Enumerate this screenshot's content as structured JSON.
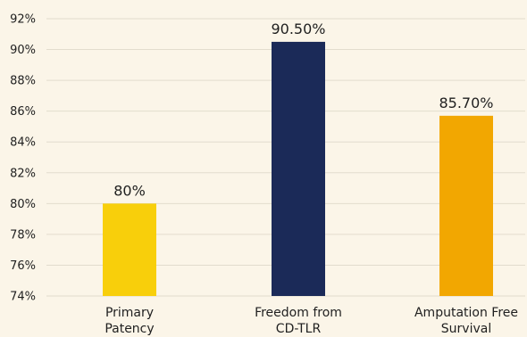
{
  "chart_data": {
    "type": "bar",
    "title": "",
    "xlabel": "",
    "ylabel": "",
    "ylim": [
      74,
      92
    ],
    "yticks": [
      74,
      76,
      78,
      80,
      82,
      84,
      86,
      88,
      90,
      92
    ],
    "ytick_labels": [
      "74%",
      "76%",
      "78%",
      "80%",
      "82%",
      "84%",
      "86%",
      "88%",
      "90%",
      "92%"
    ],
    "grid": true,
    "legend": "none",
    "categories": [
      {
        "lines": [
          "Primary",
          "Patency"
        ]
      },
      {
        "lines": [
          "Freedom from",
          "CD-TLR"
        ]
      },
      {
        "lines": [
          "Amputation Free",
          "Survival"
        ]
      }
    ],
    "values": [
      80,
      90.5,
      85.7
    ],
    "data_labels": [
      "80%",
      "90.50%",
      "85.70%"
    ],
    "colors": [
      "#f8cf0b",
      "#1b2a58",
      "#f2a701"
    ]
  }
}
